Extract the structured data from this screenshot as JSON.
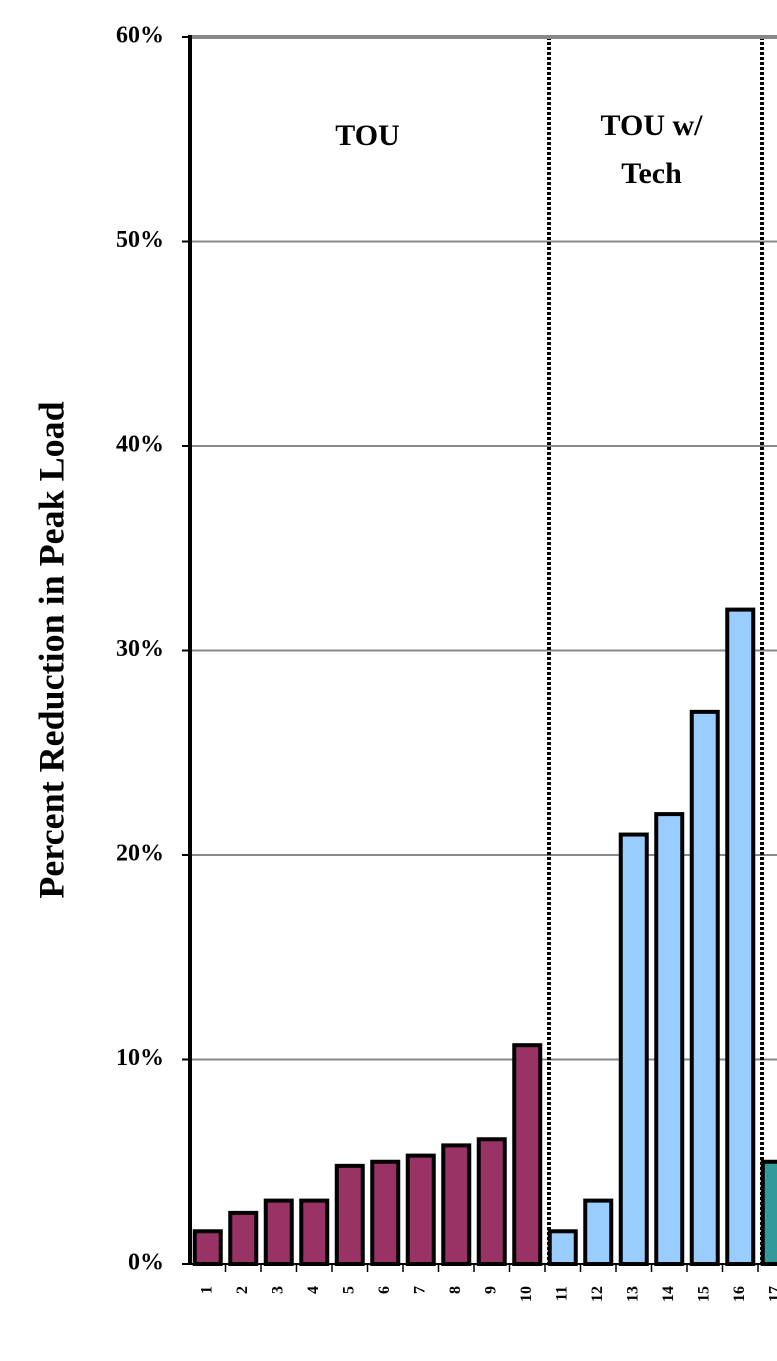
{
  "chart_data": {
    "type": "bar",
    "y_label": "Percent Reduction in Peak Load",
    "categories": [
      "1",
      "2",
      "3",
      "4",
      "5",
      "6",
      "7",
      "8",
      "9",
      "10",
      "11",
      "12",
      "13",
      "14",
      "15",
      "16",
      "17"
    ],
    "values": [
      1.6,
      2.5,
      3.1,
      3.1,
      4.8,
      5.0,
      5.3,
      5.8,
      6.1,
      10.7,
      1.6,
      3.1,
      21.0,
      22.0,
      27.0,
      32.0,
      5.0
    ],
    "colors": [
      "#993366",
      "#993366",
      "#993366",
      "#993366",
      "#993366",
      "#993366",
      "#993366",
      "#993366",
      "#993366",
      "#993366",
      "#99ccff",
      "#99ccff",
      "#99ccff",
      "#99ccff",
      "#99ccff",
      "#99ccff",
      "#339999"
    ],
    "annotations": [
      [
        "TOU"
      ],
      [
        "TOU w/",
        "Tech"
      ]
    ],
    "ylim": [
      0,
      60
    ],
    "yticks": [
      {
        "value": 0,
        "label": "0%"
      },
      {
        "value": 10,
        "label": "10%"
      },
      {
        "value": 20,
        "label": "20%"
      },
      {
        "value": 30,
        "label": "30%"
      },
      {
        "value": 40,
        "label": "40%"
      },
      {
        "value": 50,
        "label": "50%"
      },
      {
        "value": 60,
        "label": "60%"
      }
    ],
    "grid": true
  }
}
